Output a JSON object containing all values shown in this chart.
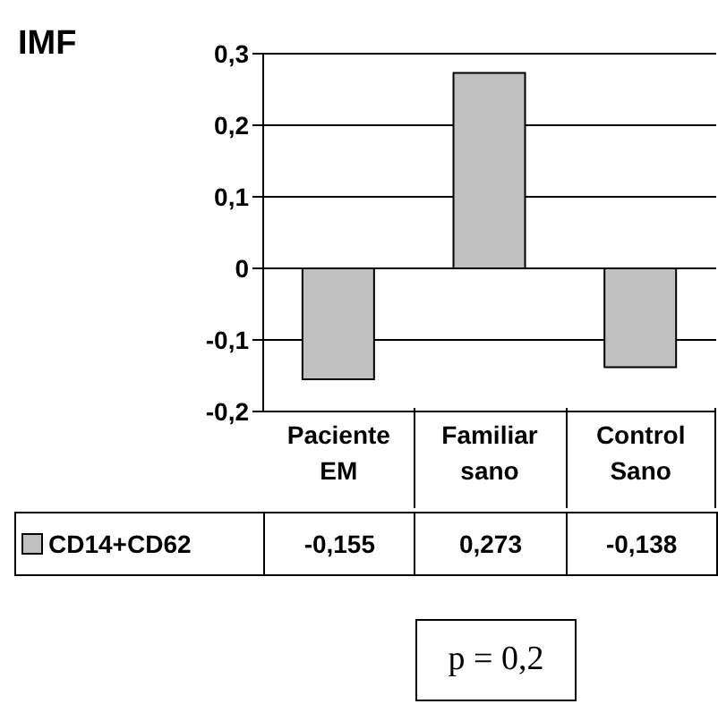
{
  "chart_data": {
    "type": "bar",
    "title": "IMF",
    "categories": [
      "Paciente EM",
      "Familiar sano",
      "Control Sano"
    ],
    "series": [
      {
        "name": "CD14+CD62",
        "color": "#c0c0c0",
        "values": [
          -0.155,
          0.273,
          -0.138
        ],
        "value_labels": [
          "-0,155",
          "0,273",
          "-0,138"
        ]
      }
    ],
    "ylim": [
      -0.2,
      0.3
    ],
    "yticks": [
      {
        "value": -0.2,
        "label": "-0,2"
      },
      {
        "value": -0.1,
        "label": "-0,1"
      },
      {
        "value": 0,
        "label": "0"
      },
      {
        "value": 0.1,
        "label": "0,1"
      },
      {
        "value": 0.2,
        "label": "0,2"
      },
      {
        "value": 0.3,
        "label": "0,3"
      }
    ],
    "grid": "y",
    "legend": "bottom",
    "annotations": [
      "p = 0,2"
    ]
  }
}
